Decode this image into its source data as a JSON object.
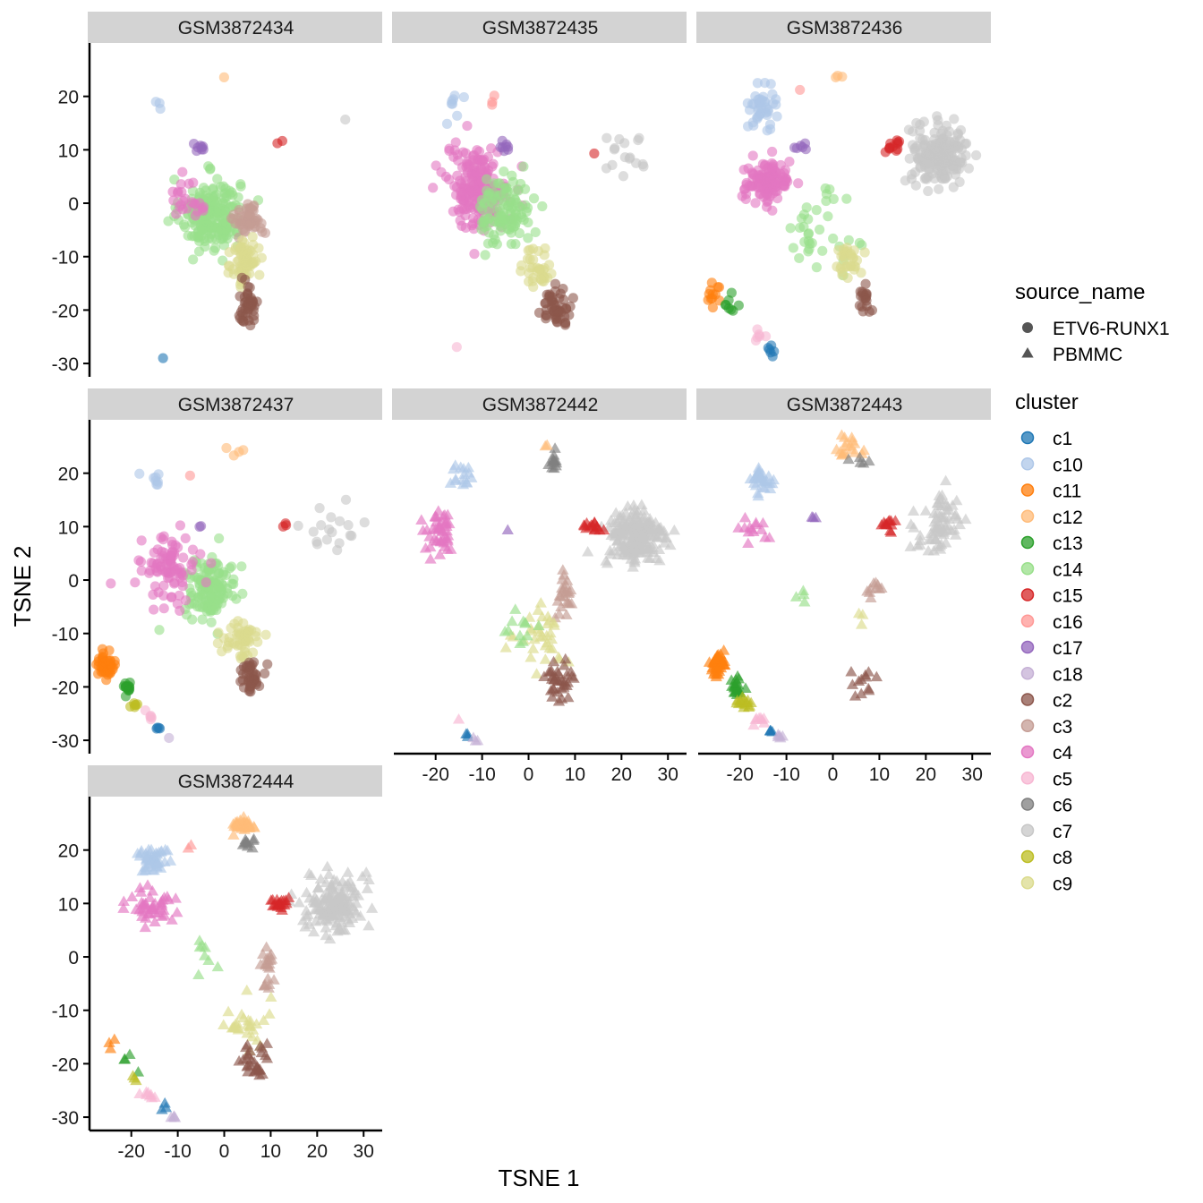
{
  "chart_data": {
    "type": "scatter",
    "xlabel": "TSNE 1",
    "ylabel": "TSNE 2",
    "xlim": [
      -29,
      34
    ],
    "ylim": [
      -32.5,
      30
    ],
    "x_ticks": [
      -20,
      -10,
      0,
      10,
      20,
      30
    ],
    "y_ticks": [
      -30,
      -20,
      -10,
      0,
      10,
      20
    ],
    "legend_placement": "right",
    "shape_legend": {
      "title": "source_name",
      "entries": [
        {
          "label": "ETV6-RUNX1",
          "shape": "circle"
        },
        {
          "label": "PBMMC",
          "shape": "triangle"
        }
      ]
    },
    "color_legend": {
      "title": "cluster",
      "entries": [
        {
          "label": "c1",
          "color": "#1F77B4"
        },
        {
          "label": "c10",
          "color": "#AEC7E8"
        },
        {
          "label": "c11",
          "color": "#FF7F0E"
        },
        {
          "label": "c12",
          "color": "#FFBB78"
        },
        {
          "label": "c13",
          "color": "#2CA02C"
        },
        {
          "label": "c14",
          "color": "#98DF8A"
        },
        {
          "label": "c15",
          "color": "#D62728"
        },
        {
          "label": "c16",
          "color": "#FF9896"
        },
        {
          "label": "c17",
          "color": "#9467BD"
        },
        {
          "label": "c18",
          "color": "#C5B0D5"
        },
        {
          "label": "c2",
          "color": "#8C564B"
        },
        {
          "label": "c3",
          "color": "#C49C94"
        },
        {
          "label": "c4",
          "color": "#E377C2"
        },
        {
          "label": "c5",
          "color": "#F7B6D2"
        },
        {
          "label": "c6",
          "color": "#7F7F7F"
        },
        {
          "label": "c7",
          "color": "#C7C7C7"
        },
        {
          "label": "c8",
          "color": "#BCBD22"
        },
        {
          "label": "c9",
          "color": "#DBDB8D"
        }
      ]
    },
    "panels": [
      {
        "title": "GSM3872434",
        "source": "ETV6-RUNX1",
        "clusters": [
          {
            "cluster": "c14",
            "x": -3,
            "y": -2,
            "sx": 3.2,
            "sy": 3.3,
            "n": 220
          },
          {
            "cluster": "c3",
            "x": 5.5,
            "y": -3,
            "sx": 1.6,
            "sy": 1.5,
            "n": 50
          },
          {
            "cluster": "c9",
            "x": 4.5,
            "y": -11,
            "sx": 1.4,
            "sy": 2.4,
            "n": 70
          },
          {
            "cluster": "c2",
            "x": 5,
            "y": -19,
            "sx": 1.1,
            "sy": 1.8,
            "n": 45
          },
          {
            "cluster": "c4",
            "x": -7,
            "y": 1,
            "sx": 2.5,
            "sy": 2.5,
            "n": 25
          },
          {
            "cluster": "c17",
            "x": -5,
            "y": 10.5,
            "sx": 0.6,
            "sy": 0.4,
            "n": 8
          },
          {
            "cluster": "c10",
            "x": -14.5,
            "y": 18.5,
            "sx": 1.5,
            "sy": 0.6,
            "n": 3
          },
          {
            "cluster": "c12",
            "x": 0,
            "y": 23.5,
            "sx": 0.2,
            "sy": 0.2,
            "n": 1
          },
          {
            "cluster": "c15",
            "x": 12.5,
            "y": 11,
            "sx": 0.8,
            "sy": 0.3,
            "n": 2
          },
          {
            "cluster": "c7",
            "x": 26,
            "y": 15.5,
            "sx": 0.1,
            "sy": 0.1,
            "n": 1
          },
          {
            "cluster": "c1",
            "x": -13,
            "y": -29,
            "sx": 0.1,
            "sy": 0.1,
            "n": 1
          }
        ]
      },
      {
        "title": "GSM3872435",
        "source": "ETV6-RUNX1",
        "clusters": [
          {
            "cluster": "c4",
            "x": -11,
            "y": 3,
            "sx": 3.3,
            "sy": 3.8,
            "n": 200
          },
          {
            "cluster": "c14",
            "x": -5,
            "y": -1.5,
            "sx": 2.8,
            "sy": 3.3,
            "n": 110
          },
          {
            "cluster": "c9",
            "x": 2,
            "y": -12,
            "sx": 1.8,
            "sy": 2,
            "n": 35
          },
          {
            "cluster": "c2",
            "x": 6,
            "y": -19.5,
            "sx": 1.6,
            "sy": 1.7,
            "n": 50
          },
          {
            "cluster": "c17",
            "x": -5.5,
            "y": 10.5,
            "sx": 0.7,
            "sy": 0.5,
            "n": 8
          },
          {
            "cluster": "c10",
            "x": -16,
            "y": 18.5,
            "sx": 1.6,
            "sy": 1.3,
            "n": 8
          },
          {
            "cluster": "c16",
            "x": -7.5,
            "y": 20,
            "sx": 0.6,
            "sy": 0.9,
            "n": 3
          },
          {
            "cluster": "c7",
            "x": 22,
            "y": 9,
            "sx": 3.5,
            "sy": 2.5,
            "n": 16
          },
          {
            "cluster": "c15",
            "x": 14,
            "y": 9,
            "sx": 0.2,
            "sy": 0.2,
            "n": 1
          },
          {
            "cluster": "c5",
            "x": -15.5,
            "y": -27,
            "sx": 0.1,
            "sy": 0.1,
            "n": 1
          }
        ]
      },
      {
        "title": "GSM3872436",
        "source": "ETV6-RUNX1",
        "clusters": [
          {
            "cluster": "c4",
            "x": -14,
            "y": 4,
            "sx": 2.5,
            "sy": 2,
            "n": 120
          },
          {
            "cluster": "c14",
            "x": -4,
            "y": -5.5,
            "sx": 3.5,
            "sy": 3.5,
            "n": 35
          },
          {
            "cluster": "c9",
            "x": 3,
            "y": -11,
            "sx": 1.5,
            "sy": 2,
            "n": 30
          },
          {
            "cluster": "c2",
            "x": 7,
            "y": -19,
            "sx": 0.7,
            "sy": 2,
            "n": 18
          },
          {
            "cluster": "c10",
            "x": -15,
            "y": 18.5,
            "sx": 1.5,
            "sy": 1.8,
            "n": 40
          },
          {
            "cluster": "c17",
            "x": -6.5,
            "y": 10.5,
            "sx": 0.8,
            "sy": 0.4,
            "n": 6
          },
          {
            "cluster": "c12",
            "x": 1,
            "y": 23.5,
            "sx": 0.5,
            "sy": 0.5,
            "n": 3
          },
          {
            "cluster": "c16",
            "x": -7,
            "y": 21,
            "sx": 0.2,
            "sy": 0.2,
            "n": 1
          },
          {
            "cluster": "c7",
            "x": 23,
            "y": 9,
            "sx": 3,
            "sy": 2.8,
            "n": 190
          },
          {
            "cluster": "c15",
            "x": 13,
            "y": 10.5,
            "sx": 1.2,
            "sy": 0.8,
            "n": 12
          },
          {
            "cluster": "c11",
            "x": -25.5,
            "y": -16.5,
            "sx": 0.7,
            "sy": 1,
            "n": 12
          },
          {
            "cluster": "c13",
            "x": -22,
            "y": -19.5,
            "sx": 0.9,
            "sy": 1.8,
            "n": 8
          },
          {
            "cluster": "c5",
            "x": -16,
            "y": -25.5,
            "sx": 0.8,
            "sy": 0.6,
            "n": 6
          },
          {
            "cluster": "c1",
            "x": -13.5,
            "y": -28,
            "sx": 0.5,
            "sy": 0.7,
            "n": 6
          }
        ]
      },
      {
        "title": "GSM3872437",
        "source": "ETV6-RUNX1",
        "clusters": [
          {
            "cluster": "c14",
            "x": -3,
            "y": -1.5,
            "sx": 2.8,
            "sy": 2.8,
            "n": 130
          },
          {
            "cluster": "c4",
            "x": -12,
            "y": 2,
            "sx": 3,
            "sy": 3,
            "n": 90
          },
          {
            "cluster": "c9",
            "x": 4,
            "y": -11,
            "sx": 2,
            "sy": 1.8,
            "n": 50
          },
          {
            "cluster": "c2",
            "x": 5.5,
            "y": -18,
            "sx": 1.2,
            "sy": 1.6,
            "n": 40
          },
          {
            "cluster": "c10",
            "x": -15,
            "y": 18,
            "sx": 1.2,
            "sy": 1.2,
            "n": 8
          },
          {
            "cluster": "c17",
            "x": -5,
            "y": 10,
            "sx": 0.3,
            "sy": 0.2,
            "n": 2
          },
          {
            "cluster": "c12",
            "x": 3,
            "y": 24,
            "sx": 1.2,
            "sy": 0.5,
            "n": 4
          },
          {
            "cluster": "c16",
            "x": -7.5,
            "y": 19.5,
            "sx": 0.2,
            "sy": 0.2,
            "n": 1
          },
          {
            "cluster": "c15",
            "x": 13.5,
            "y": 10.5,
            "sx": 0.8,
            "sy": 0.3,
            "n": 3
          },
          {
            "cluster": "c7",
            "x": 22,
            "y": 9.5,
            "sx": 3.5,
            "sy": 3,
            "n": 18
          },
          {
            "cluster": "c11",
            "x": -25.5,
            "y": -16,
            "sx": 1.2,
            "sy": 1.2,
            "n": 40
          },
          {
            "cluster": "c13",
            "x": -21,
            "y": -20,
            "sx": 0.6,
            "sy": 0.8,
            "n": 15
          },
          {
            "cluster": "c8",
            "x": -19,
            "y": -23.5,
            "sx": 0.9,
            "sy": 0.5,
            "n": 6
          },
          {
            "cluster": "c5",
            "x": -16,
            "y": -25.5,
            "sx": 0.8,
            "sy": 0.6,
            "n": 5
          },
          {
            "cluster": "c1",
            "x": -14,
            "y": -28,
            "sx": 0.3,
            "sy": 0.4,
            "n": 4
          },
          {
            "cluster": "c18",
            "x": -12,
            "y": -29.5,
            "sx": 0.2,
            "sy": 0.2,
            "n": 1
          }
        ]
      },
      {
        "title": "GSM3872442",
        "source": "PBMMC",
        "clusters": [
          {
            "cluster": "c7",
            "x": 23,
            "y": 8,
            "sx": 3.2,
            "sy": 2.8,
            "n": 200
          },
          {
            "cluster": "c15",
            "x": 13,
            "y": 10,
            "sx": 1.2,
            "sy": 0.6,
            "n": 15
          },
          {
            "cluster": "c4",
            "x": -19,
            "y": 8.5,
            "sx": 1.5,
            "sy": 2,
            "n": 45
          },
          {
            "cluster": "c10",
            "x": -14.5,
            "y": 19.5,
            "sx": 2,
            "sy": 1.2,
            "n": 15
          },
          {
            "cluster": "c6",
            "x": 5,
            "y": 22,
            "sx": 0.7,
            "sy": 1,
            "n": 12
          },
          {
            "cluster": "c12",
            "x": 3.5,
            "y": 25.5,
            "sx": 0.3,
            "sy": 0.3,
            "n": 2
          },
          {
            "cluster": "c17",
            "x": -4.5,
            "y": 9.5,
            "sx": 0.2,
            "sy": 0.2,
            "n": 1
          },
          {
            "cluster": "c3",
            "x": 8,
            "y": -2.5,
            "sx": 1,
            "sy": 2.8,
            "n": 25
          },
          {
            "cluster": "c9",
            "x": 3,
            "y": -10.5,
            "sx": 2.6,
            "sy": 2.2,
            "n": 35
          },
          {
            "cluster": "c2",
            "x": 6.5,
            "y": -19,
            "sx": 1.6,
            "sy": 2,
            "n": 35
          },
          {
            "cluster": "c14",
            "x": -2.5,
            "y": -9,
            "sx": 2,
            "sy": 1.8,
            "n": 12
          },
          {
            "cluster": "c1",
            "x": -13,
            "y": -29,
            "sx": 0.4,
            "sy": 0.3,
            "n": 3
          },
          {
            "cluster": "c18",
            "x": -11.5,
            "y": -30,
            "sx": 0.5,
            "sy": 0.3,
            "n": 3
          },
          {
            "cluster": "c5",
            "x": -15.5,
            "y": -26,
            "sx": 0.2,
            "sy": 0.2,
            "n": 1
          }
        ]
      },
      {
        "title": "GSM3872443",
        "source": "PBMMC",
        "clusters": [
          {
            "cluster": "c7",
            "x": 23,
            "y": 10,
            "sx": 2.5,
            "sy": 3,
            "n": 70
          },
          {
            "cluster": "c15",
            "x": 12,
            "y": 10.5,
            "sx": 1.2,
            "sy": 0.8,
            "n": 12
          },
          {
            "cluster": "c4",
            "x": -16.5,
            "y": 9,
            "sx": 2.5,
            "sy": 1.2,
            "n": 14
          },
          {
            "cluster": "c10",
            "x": -15,
            "y": 18.5,
            "sx": 1.2,
            "sy": 1.3,
            "n": 30
          },
          {
            "cluster": "c12",
            "x": 4,
            "y": 24.5,
            "sx": 1.6,
            "sy": 1,
            "n": 18
          },
          {
            "cluster": "c6",
            "x": 5.5,
            "y": 22.5,
            "sx": 1,
            "sy": 0.6,
            "n": 5
          },
          {
            "cluster": "c17",
            "x": -4,
            "y": 11.5,
            "sx": 0.6,
            "sy": 0.3,
            "n": 3
          },
          {
            "cluster": "c3",
            "x": 9,
            "y": -1.5,
            "sx": 1,
            "sy": 1,
            "n": 10
          },
          {
            "cluster": "c9",
            "x": 6,
            "y": -6.5,
            "sx": 0.5,
            "sy": 1.2,
            "n": 3
          },
          {
            "cluster": "c2",
            "x": 7,
            "y": -17.5,
            "sx": 1.2,
            "sy": 2,
            "n": 12
          },
          {
            "cluster": "c14",
            "x": -5,
            "y": -4.5,
            "sx": 2,
            "sy": 1.5,
            "n": 4
          },
          {
            "cluster": "c11",
            "x": -25,
            "y": -16,
            "sx": 0.8,
            "sy": 1,
            "n": 45
          },
          {
            "cluster": "c13",
            "x": -21,
            "y": -20,
            "sx": 0.7,
            "sy": 0.8,
            "n": 20
          },
          {
            "cluster": "c8",
            "x": -19.5,
            "y": -23,
            "sx": 0.8,
            "sy": 0.5,
            "n": 15
          },
          {
            "cluster": "c5",
            "x": -16,
            "y": -26,
            "sx": 0.8,
            "sy": 0.5,
            "n": 8
          },
          {
            "cluster": "c1",
            "x": -13.5,
            "y": -28.5,
            "sx": 0.4,
            "sy": 0.3,
            "n": 4
          },
          {
            "cluster": "c18",
            "x": -11.5,
            "y": -29.5,
            "sx": 0.5,
            "sy": 0.3,
            "n": 5
          }
        ]
      },
      {
        "title": "GSM3872444",
        "source": "PBMMC",
        "clusters": [
          {
            "cluster": "c7",
            "x": 24,
            "y": 10,
            "sx": 3,
            "sy": 2.8,
            "n": 160
          },
          {
            "cluster": "c15",
            "x": 12,
            "y": 10,
            "sx": 1,
            "sy": 0.6,
            "n": 20
          },
          {
            "cluster": "c4",
            "x": -16.5,
            "y": 9.5,
            "sx": 2.5,
            "sy": 1.8,
            "n": 45
          },
          {
            "cluster": "c10",
            "x": -15.5,
            "y": 18.5,
            "sx": 1.5,
            "sy": 1.3,
            "n": 50
          },
          {
            "cluster": "c12",
            "x": 4,
            "y": 24.5,
            "sx": 1.2,
            "sy": 0.6,
            "n": 40
          },
          {
            "cluster": "c6",
            "x": 5,
            "y": 21.5,
            "sx": 0.8,
            "sy": 0.7,
            "n": 10
          },
          {
            "cluster": "c16",
            "x": -7.5,
            "y": 20.5,
            "sx": 0.3,
            "sy": 0.3,
            "n": 2
          },
          {
            "cluster": "c3",
            "x": 9,
            "y": -2,
            "sx": 0.9,
            "sy": 2.2,
            "n": 22
          },
          {
            "cluster": "c9",
            "x": 5,
            "y": -12,
            "sx": 2.2,
            "sy": 2.2,
            "n": 28
          },
          {
            "cluster": "c2",
            "x": 7,
            "y": -19.5,
            "sx": 1.8,
            "sy": 1.7,
            "n": 30
          },
          {
            "cluster": "c14",
            "x": -4,
            "y": 0,
            "sx": 2,
            "sy": 2,
            "n": 8
          },
          {
            "cluster": "c11",
            "x": -24.5,
            "y": -16,
            "sx": 0.7,
            "sy": 1.5,
            "n": 3
          },
          {
            "cluster": "c13",
            "x": -21.5,
            "y": -20,
            "sx": 0.8,
            "sy": 1.2,
            "n": 4
          },
          {
            "cluster": "c8",
            "x": -19,
            "y": -23,
            "sx": 0.6,
            "sy": 0.5,
            "n": 3
          },
          {
            "cluster": "c5",
            "x": -16,
            "y": -26,
            "sx": 0.8,
            "sy": 0.6,
            "n": 8
          },
          {
            "cluster": "c1",
            "x": -13,
            "y": -28,
            "sx": 0.4,
            "sy": 0.4,
            "n": 3
          },
          {
            "cluster": "c18",
            "x": -11,
            "y": -30,
            "sx": 0.6,
            "sy": 0.2,
            "n": 4
          }
        ]
      }
    ]
  }
}
